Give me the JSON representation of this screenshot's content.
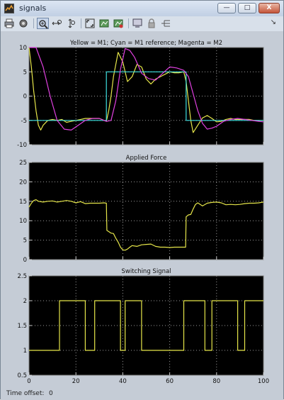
{
  "window": {
    "title": "signals",
    "min_label": "—",
    "max_label": "□",
    "close_label": "X"
  },
  "toolbar": {
    "dock_label": "↘"
  },
  "status": {
    "label": "Time offset:",
    "value": "0"
  },
  "colors": {
    "yellow": "#e6e64a",
    "cyan": "#3ee0e0",
    "magenta": "#e040e0",
    "plot_bg": "#000000",
    "axis_text": "#ffffff"
  },
  "chart_data": [
    {
      "type": "line",
      "title": "Yellow = M1;     Cyan = M1 reference;     Magenta = M2",
      "xlim": [
        0,
        100
      ],
      "ylim": [
        -10,
        10
      ],
      "yticks": [
        -10,
        -5,
        0,
        5,
        10
      ],
      "xticks": [
        0,
        20,
        40,
        60,
        80,
        100
      ],
      "grid": true,
      "series": [
        {
          "color": "yellow",
          "x": [
            0,
            1,
            2,
            3,
            4,
            5,
            6,
            8,
            10,
            12,
            14,
            16,
            18,
            20,
            22,
            24,
            26,
            28,
            30,
            32,
            33,
            34,
            35,
            36,
            38,
            40,
            42,
            44,
            46,
            48,
            50,
            52,
            54,
            56,
            58,
            60,
            62,
            64,
            66,
            67,
            68,
            69,
            70,
            72,
            74,
            76,
            78,
            80,
            82,
            84,
            86,
            88,
            90,
            92,
            94,
            96,
            98,
            100
          ],
          "y": [
            10,
            6,
            1,
            -3,
            -6,
            -7,
            -6,
            -5,
            -4.8,
            -5,
            -4.8,
            -5.4,
            -5.2,
            -5,
            -4.8,
            -4.6,
            -4.6,
            -4.6,
            -4.6,
            -5,
            -5.2,
            -3,
            0,
            4,
            9,
            7,
            3,
            4,
            6.5,
            6,
            3.5,
            2.5,
            3.5,
            4,
            4.5,
            5,
            4.8,
            4.8,
            5,
            3,
            -1,
            -5,
            -7.5,
            -6,
            -4.5,
            -4,
            -4.6,
            -5.3,
            -5.2,
            -4.8,
            -4.6,
            -4.8,
            -4.8,
            -4.8,
            -4.8,
            -5,
            -5,
            -5
          ]
        },
        {
          "color": "cyan",
          "x": [
            0,
            33,
            33,
            67,
            67,
            100
          ],
          "y": [
            -5,
            -5,
            5,
            5,
            -5,
            -5
          ]
        },
        {
          "color": "magenta",
          "x": [
            0,
            3,
            6,
            9,
            12,
            15,
            18,
            21,
            24,
            27,
            30,
            33,
            35,
            37,
            39,
            41,
            43,
            45,
            48,
            51,
            54,
            57,
            60,
            63,
            66,
            68,
            70,
            72,
            74,
            76,
            78,
            80,
            83,
            86,
            89,
            92,
            95,
            98,
            100
          ],
          "y": [
            10,
            10,
            6,
            0,
            -5,
            -6.8,
            -7,
            -6,
            -5,
            -4.6,
            -4.6,
            -5.2,
            -5,
            -1,
            5.5,
            9.8,
            9.4,
            8,
            4.7,
            3.6,
            3.3,
            4.7,
            6,
            5.8,
            5.3,
            4,
            0.5,
            -3,
            -5.6,
            -6.8,
            -6.6,
            -6.2,
            -5.2,
            -4.8,
            -4.6,
            -4.8,
            -5,
            -5.2,
            -5.3
          ]
        }
      ]
    },
    {
      "type": "line",
      "title": "Applied Force",
      "xlim": [
        0,
        100
      ],
      "ylim": [
        0,
        25
      ],
      "yticks": [
        0,
        5,
        10,
        15,
        20,
        25
      ],
      "xticks": [
        0,
        20,
        40,
        60,
        80,
        100
      ],
      "grid": true,
      "series": [
        {
          "color": "yellow",
          "x": [
            0,
            1,
            2,
            3,
            4,
            6,
            8,
            10,
            12,
            14,
            16,
            18,
            20,
            22,
            24,
            26,
            28,
            30,
            32,
            33,
            33.2,
            34,
            35,
            36,
            37,
            38,
            39,
            40,
            41,
            42,
            43,
            44,
            46,
            48,
            50,
            52,
            54,
            56,
            58,
            60,
            62,
            64,
            66,
            66.8,
            67,
            68,
            69,
            70,
            71,
            72,
            74,
            76,
            78,
            80,
            82,
            84,
            86,
            88,
            90,
            92,
            94,
            96,
            98,
            100
          ],
          "y": [
            13.5,
            14.5,
            15.2,
            15.4,
            15,
            14.8,
            15,
            15.1,
            14.8,
            15,
            15.2,
            15,
            14.6,
            14.9,
            14.4,
            14.5,
            14.5,
            14.5,
            14.6,
            14.5,
            7.5,
            7.2,
            6.8,
            6.7,
            5.5,
            4.5,
            3.2,
            2.5,
            2.4,
            2.7,
            3.2,
            3.6,
            3.4,
            3.8,
            3.9,
            4,
            3.4,
            3.2,
            3.2,
            3.1,
            3.2,
            3.2,
            3.2,
            3.2,
            11,
            11.5,
            11.6,
            13,
            14.2,
            14.6,
            13.8,
            14.5,
            14.7,
            14.8,
            14.6,
            14.1,
            14.2,
            14.1,
            14.2,
            14.4,
            14.5,
            14.5,
            14.6,
            14.8
          ]
        }
      ]
    },
    {
      "type": "line",
      "title": "Switching Signal",
      "xlim": [
        0,
        100
      ],
      "ylim": [
        0.5,
        2.5
      ],
      "yticks": [
        0.5,
        1,
        1.5,
        2,
        2.5
      ],
      "xticks": [
        0,
        20,
        40,
        60,
        80,
        100
      ],
      "grid": true,
      "series": [
        {
          "color": "yellow",
          "x": [
            0,
            13,
            13,
            24,
            24,
            28,
            28,
            39,
            39,
            41,
            41,
            48,
            48,
            66,
            66,
            75,
            75,
            78,
            78,
            89,
            89,
            92,
            92,
            100
          ],
          "y": [
            1,
            1,
            2,
            2,
            1,
            1,
            2,
            2,
            1,
            1,
            2,
            2,
            1,
            1,
            2,
            2,
            1,
            1,
            2,
            2,
            1,
            1,
            2,
            2
          ]
        }
      ]
    }
  ]
}
